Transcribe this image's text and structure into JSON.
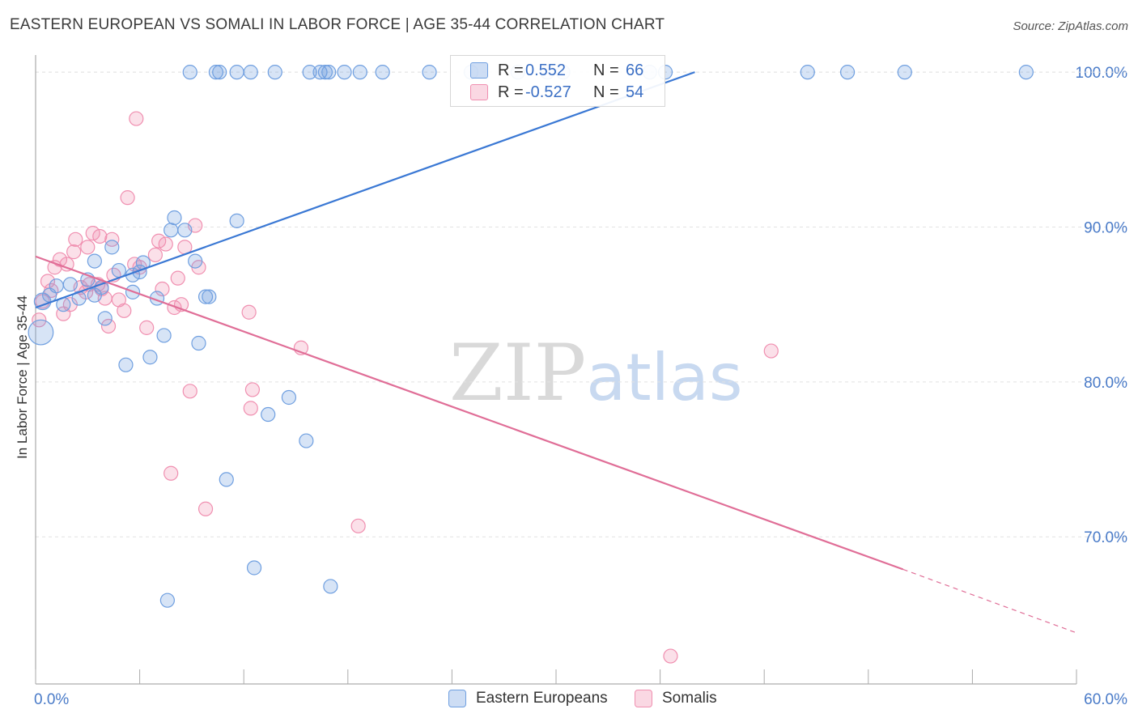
{
  "header": {
    "title": "EASTERN EUROPEAN VS SOMALI IN LABOR FORCE | AGE 35-44 CORRELATION CHART",
    "source": "Source: ZipAtlas.com"
  },
  "watermark": {
    "zip": "ZIP",
    "atlas": "atlas"
  },
  "legend": {
    "rows": [
      {
        "r_label": "R =",
        "r_value": "0.552",
        "n_label": "N =",
        "n_value": "66",
        "color": "#6f9fe0"
      },
      {
        "r_label": "R =",
        "r_value": "-0.527",
        "n_label": "N =",
        "n_value": "54",
        "color": "#f08fb0"
      }
    ]
  },
  "bottom_legend": {
    "series": [
      {
        "name": "Eastern Europeans",
        "color": "#6f9fe0"
      },
      {
        "name": "Somalis",
        "color": "#f08fb0"
      }
    ]
  },
  "chart_data": {
    "type": "scatter",
    "title": "EASTERN EUROPEAN VS SOMALI IN LABOR FORCE | AGE 35-44 CORRELATION CHART",
    "xlabel": "",
    "ylabel": "In Labor Force | Age 35-44",
    "xlim": [
      0,
      60
    ],
    "ylim": [
      60.5,
      101
    ],
    "x_tick_labels": [
      "0.0%",
      "60.0%"
    ],
    "y_ticks": [
      70,
      80,
      90,
      100
    ],
    "y_tick_labels": [
      "70.0%",
      "80.0%",
      "90.0%",
      "100.0%"
    ],
    "grid": true,
    "colors": {
      "blue": "#6f9fe0",
      "blue_line": "#3a78d4",
      "pink": "#f08fb0",
      "pink_line": "#e06e97"
    },
    "series": [
      {
        "name": "Eastern Europeans",
        "trend": {
          "x1": 0,
          "y1": 84.8,
          "x2": 38.0,
          "y2": 100.0
        },
        "points": [
          [
            0.3,
            83.2,
            18
          ],
          [
            0.4,
            85.2,
            12
          ],
          [
            0.8,
            85.6,
            10
          ],
          [
            1.2,
            86.2,
            10
          ],
          [
            1.6,
            85.0,
            10
          ],
          [
            2.0,
            86.3,
            10
          ],
          [
            2.5,
            85.4,
            10
          ],
          [
            3.0,
            86.6,
            10
          ],
          [
            3.4,
            85.6,
            10
          ],
          [
            3.4,
            87.8,
            10
          ],
          [
            3.8,
            86.1,
            10
          ],
          [
            4.0,
            84.1,
            10
          ],
          [
            4.4,
            88.7,
            10
          ],
          [
            4.8,
            87.2,
            10
          ],
          [
            5.2,
            81.1,
            10
          ],
          [
            5.6,
            86.9,
            10
          ],
          [
            5.6,
            85.8,
            10
          ],
          [
            6.0,
            87.1,
            10
          ],
          [
            6.2,
            87.7,
            10
          ],
          [
            6.6,
            81.6,
            10
          ],
          [
            7.0,
            85.4,
            10
          ],
          [
            7.4,
            83.0,
            10
          ],
          [
            7.6,
            65.9,
            10
          ],
          [
            7.8,
            89.8,
            10
          ],
          [
            8.0,
            90.6,
            10
          ],
          [
            8.6,
            89.8,
            10
          ],
          [
            9.2,
            87.8,
            10
          ],
          [
            9.4,
            82.5,
            10
          ],
          [
            9.8,
            85.5,
            10
          ],
          [
            10.0,
            85.5,
            10
          ],
          [
            11.0,
            73.7,
            10
          ],
          [
            11.6,
            90.4,
            10
          ],
          [
            12.6,
            68.0,
            10
          ],
          [
            13.4,
            77.9,
            10
          ],
          [
            14.6,
            79.0,
            10
          ],
          [
            15.6,
            76.2,
            10
          ],
          [
            17.0,
            66.8,
            10
          ],
          [
            8.9,
            100.0,
            10
          ],
          [
            10.4,
            100.0,
            10
          ],
          [
            10.6,
            100.0,
            10
          ],
          [
            11.6,
            100.0,
            10
          ],
          [
            12.4,
            100.0,
            10
          ],
          [
            13.8,
            100.0,
            10
          ],
          [
            15.8,
            100.0,
            10
          ],
          [
            16.4,
            100.0,
            10
          ],
          [
            16.7,
            100.0,
            10
          ],
          [
            16.9,
            100.0,
            10
          ],
          [
            17.8,
            100.0,
            10
          ],
          [
            18.7,
            100.0,
            10
          ],
          [
            20.0,
            100.0,
            10
          ],
          [
            22.7,
            100.0,
            10
          ],
          [
            25.1,
            100.0,
            10
          ],
          [
            27.8,
            100.0,
            10
          ],
          [
            29.5,
            100.0,
            10
          ],
          [
            30.4,
            100.0,
            10
          ],
          [
            35.4,
            100.0,
            10
          ],
          [
            36.3,
            100.0,
            10
          ],
          [
            44.5,
            100.0,
            10
          ],
          [
            46.8,
            100.0,
            10
          ],
          [
            50.1,
            100.0,
            10
          ],
          [
            57.1,
            100.0,
            10
          ]
        ]
      },
      {
        "name": "Somalis",
        "trend": {
          "x1": 0,
          "y1": 88.1,
          "x2": 50.0,
          "y2": 67.9,
          "dash_x2": 60.0,
          "dash_y2": 63.8
        },
        "points": [
          [
            0.2,
            84.0,
            10
          ],
          [
            0.4,
            85.2,
            10
          ],
          [
            0.7,
            86.5,
            10
          ],
          [
            0.9,
            85.9,
            10
          ],
          [
            1.1,
            87.4,
            10
          ],
          [
            1.4,
            87.9,
            10
          ],
          [
            1.6,
            84.4,
            10
          ],
          [
            1.8,
            87.6,
            10
          ],
          [
            2.0,
            85.0,
            10
          ],
          [
            2.2,
            88.4,
            10
          ],
          [
            2.3,
            89.2,
            10
          ],
          [
            2.6,
            86.1,
            10
          ],
          [
            2.9,
            85.8,
            10
          ],
          [
            3.0,
            88.7,
            10
          ],
          [
            3.1,
            86.3,
            10
          ],
          [
            3.3,
            89.6,
            10
          ],
          [
            3.6,
            86.3,
            10
          ],
          [
            3.7,
            89.4,
            10
          ],
          [
            3.8,
            86.0,
            10
          ],
          [
            4.0,
            85.4,
            10
          ],
          [
            4.2,
            83.6,
            10
          ],
          [
            4.4,
            89.2,
            10
          ],
          [
            4.5,
            86.9,
            10
          ],
          [
            4.8,
            85.3,
            10
          ],
          [
            5.1,
            84.6,
            10
          ],
          [
            5.3,
            91.9,
            10
          ],
          [
            5.7,
            87.6,
            10
          ],
          [
            5.8,
            97.0,
            10
          ],
          [
            6.0,
            87.4,
            10
          ],
          [
            6.4,
            83.5,
            10
          ],
          [
            6.9,
            88.2,
            10
          ],
          [
            7.1,
            89.1,
            10
          ],
          [
            7.3,
            86.0,
            10
          ],
          [
            7.5,
            88.9,
            10
          ],
          [
            7.8,
            74.1,
            10
          ],
          [
            8.0,
            84.8,
            10
          ],
          [
            8.2,
            86.7,
            10
          ],
          [
            8.4,
            85.0,
            10
          ],
          [
            8.6,
            88.7,
            10
          ],
          [
            8.9,
            79.4,
            10
          ],
          [
            9.2,
            90.1,
            10
          ],
          [
            9.4,
            87.4,
            10
          ],
          [
            9.8,
            71.8,
            10
          ],
          [
            12.3,
            84.5,
            10
          ],
          [
            12.4,
            78.3,
            10
          ],
          [
            12.5,
            79.5,
            10
          ],
          [
            15.3,
            82.2,
            10
          ],
          [
            18.6,
            70.7,
            10
          ],
          [
            36.6,
            62.3,
            10
          ],
          [
            42.4,
            82.0,
            10
          ]
        ]
      }
    ]
  }
}
